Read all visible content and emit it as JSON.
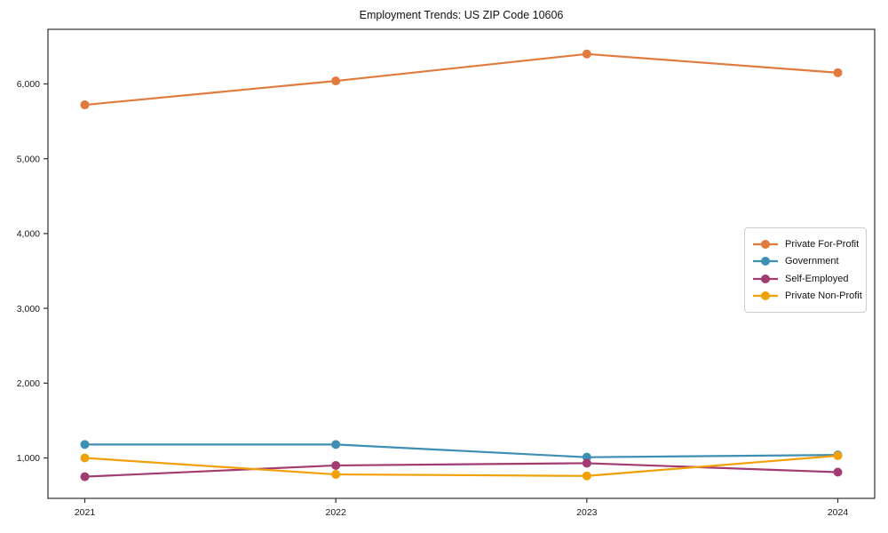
{
  "chart_data": {
    "type": "line",
    "title": "Employment Trends: US ZIP Code 10606",
    "categories": [
      "2021",
      "2022",
      "2023",
      "2024"
    ],
    "series": [
      {
        "name": "Private For-Profit",
        "color": "#E17A3D",
        "values": [
          5720,
          6040,
          6400,
          6150
        ]
      },
      {
        "name": "Government",
        "color": "#3E8FB4",
        "values": [
          1180,
          1180,
          1010,
          1040
        ]
      },
      {
        "name": "Self-Employed",
        "color": "#A23B72",
        "values": [
          750,
          900,
          930,
          810
        ]
      },
      {
        "name": "Private Non-Profit",
        "color": "#F1A008",
        "values": [
          1000,
          780,
          760,
          1030
        ]
      }
    ],
    "xlabel": "",
    "ylabel": "",
    "ylim": [
      460,
      6730
    ],
    "yticks": [
      1000,
      2000,
      3000,
      4000,
      5000,
      6000
    ],
    "ytick_labels": [
      "1,000",
      "2,000",
      "3,000",
      "4,000",
      "5,000",
      "6,000"
    ],
    "grid": false,
    "marker": "circle",
    "legend_position": "middle-right",
    "frame_color": "#2e2e2e",
    "tick_label_color": "#1a1a1a"
  }
}
